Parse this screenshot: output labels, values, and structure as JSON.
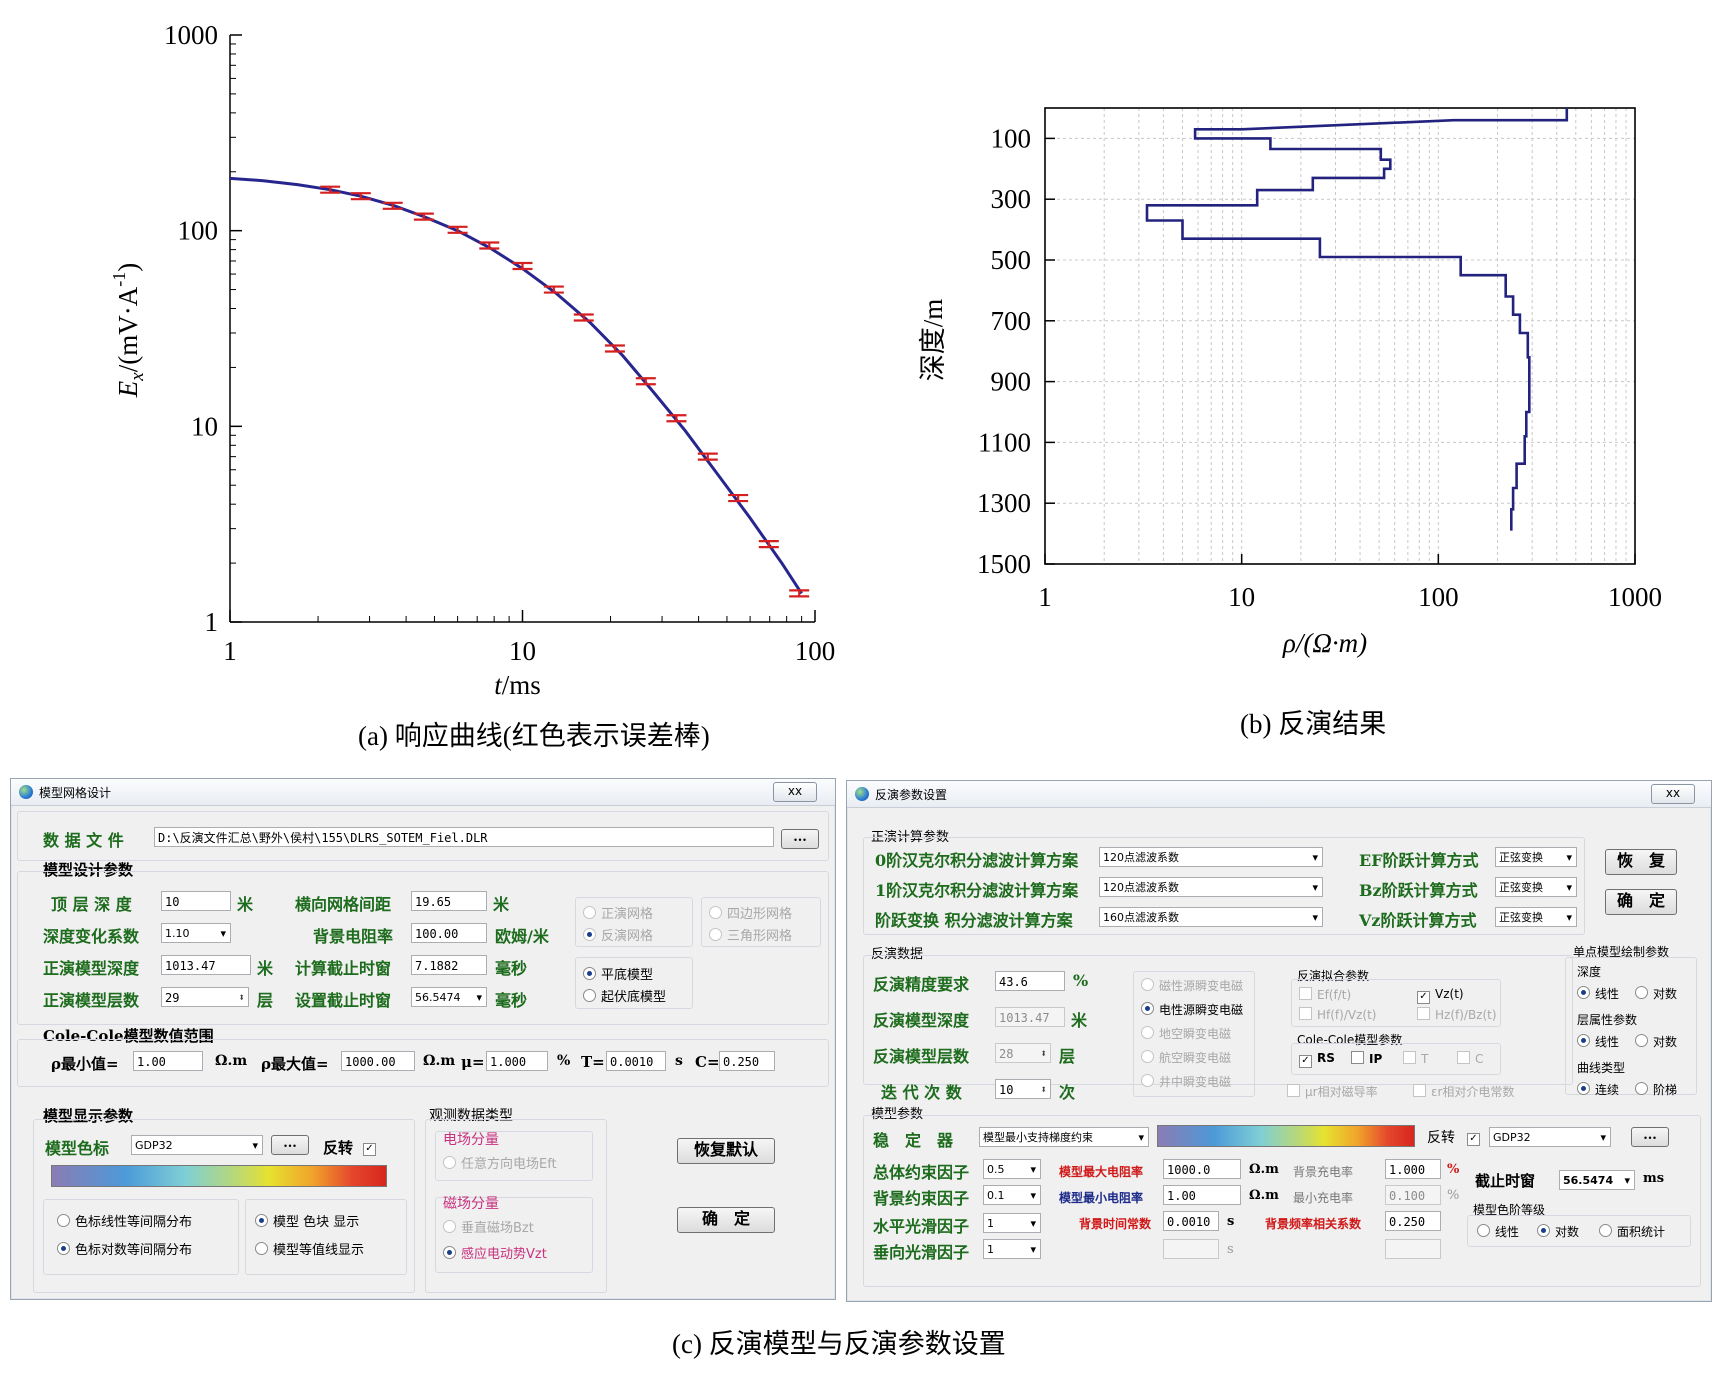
{
  "captions": {
    "a": "(a) 响应曲线(红色表示误差棒)",
    "b": "(b) 反演结果",
    "c": "(c) 反演模型与反演参数设置"
  },
  "chart_data": [
    {
      "type": "line",
      "x_scale": "log",
      "y_scale": "log",
      "xlim": [
        1,
        100
      ],
      "ylim": [
        1,
        1000
      ],
      "xlabel_main": "t",
      "xlabel_unit": "/ms",
      "ylabel_main": "E",
      "ylabel_sub": "x",
      "ylabel_unit": "/(mV·A",
      "ylabel_sup": "-1",
      "ylabel_close": ")",
      "x_ticks": [
        "1",
        "10",
        "100"
      ],
      "y_ticks": [
        "1",
        "10",
        "100",
        "1000"
      ],
      "line_color": "#26268e",
      "errorbar_color": "#d42020",
      "curve": {
        "x": [
          1,
          1.3,
          1.7,
          2.2,
          2.8,
          3.6,
          4.6,
          6,
          7.7,
          10,
          13,
          17,
          22,
          28,
          36,
          46,
          60,
          77,
          90
        ],
        "y": [
          185,
          180,
          172,
          162,
          150,
          135,
          118,
          100,
          82,
          64,
          48,
          34,
          23,
          15,
          9.5,
          5.8,
          3.4,
          2.0,
          1.4
        ]
      },
      "errorbars": {
        "x": [
          2.2,
          2.8,
          3.6,
          4.6,
          6,
          7.7,
          10,
          12.8,
          16.2,
          20.7,
          26.4,
          33.6,
          43,
          54.6,
          69.5,
          88.3
        ],
        "y": [
          162,
          150,
          134,
          118,
          101,
          84,
          66,
          50,
          36,
          25,
          17,
          11,
          7,
          4.3,
          2.5,
          1.4
        ]
      }
    },
    {
      "type": "line",
      "x_scale": "log",
      "xlim": [
        1,
        1000
      ],
      "ylim": [
        0,
        1500
      ],
      "y_inverted": true,
      "xlabel": "ρ/(Ω·m)",
      "ylabel": "深度/m",
      "x_ticks": [
        "1",
        "10",
        "100",
        "1000"
      ],
      "y_ticks": [
        "100",
        "300",
        "500",
        "700",
        "900",
        "1100",
        "1300",
        "1500"
      ],
      "line_color": "#23237f",
      "profile": {
        "rho": [
          450,
          450,
          120,
          10,
          5.8,
          5.8,
          14,
          14,
          51,
          51,
          57,
          57,
          53,
          53,
          23,
          23,
          12,
          12,
          3.3,
          3.3,
          5,
          5,
          25,
          25,
          130,
          130,
          220,
          220,
          240,
          240,
          260,
          260,
          285,
          285,
          290,
          290,
          280,
          280,
          275,
          275,
          250,
          250,
          240,
          240,
          235,
          235
        ],
        "depth": [
          0,
          40,
          40,
          70,
          70,
          100,
          100,
          135,
          135,
          170,
          170,
          200,
          200,
          230,
          230,
          270,
          270,
          320,
          320,
          370,
          370,
          430,
          430,
          490,
          490,
          550,
          550,
          620,
          620,
          680,
          680,
          740,
          740,
          820,
          820,
          1000,
          1000,
          1080,
          1080,
          1170,
          1170,
          1250,
          1250,
          1320,
          1320,
          1390
        ]
      }
    }
  ],
  "left_dialog": {
    "title": "模型网格设计",
    "close_label": "ⅹⅹ",
    "data_file_label": "数 据 文 件",
    "data_file_value": "D:\\反演文件汇总\\野外\\侯村\\155\\DLRS_SOTEM_Fiel.DLR",
    "browse_label": "...",
    "model_params_title": "模型设计参数",
    "top_depth_label": "顶 层 深 度",
    "top_depth_value": "10",
    "top_depth_unit": "米",
    "depth_change_label": "深度变化系数",
    "depth_change_value": "1.10",
    "forward_depth_label": "正演模型深度",
    "forward_depth_value": "1013.47",
    "forward_depth_unit": "米",
    "forward_layers_label": "正演模型层数",
    "forward_layers_value": "29",
    "forward_layers_unit": "层",
    "grid_spacing_label": "横向网格间距",
    "grid_spacing_value": "19.65",
    "grid_spacing_unit": "米",
    "bg_resistivity_label": "背景电阻率",
    "bg_resistivity_value": "100.00",
    "bg_resistivity_unit": "欧姆/米",
    "calc_cutoff_label": "计算截止时窗",
    "calc_cutoff_value": "7.1882",
    "calc_cutoff_unit": "毫秒",
    "set_cutoff_label": "设置截止时窗",
    "set_cutoff_value": "56.5474",
    "set_cutoff_unit": "毫秒",
    "grid_type_1": "正演网格",
    "grid_type_2": "反演网格",
    "grid_shape_1": "四边形网格",
    "grid_shape_2": "三角形网格",
    "bottom_1": "平底模型",
    "bottom_2": "起伏底模型",
    "colecole_title": "Cole-Cole模型数值范围",
    "rho_min_label": "ρ最小值=",
    "rho_min_value": "1.00",
    "rho_min_unit": "Ω.m",
    "rho_max_label": "ρ最大值=",
    "rho_max_value": "1000.00",
    "rho_max_unit": "Ω.m",
    "mu_label": "μ=",
    "mu_value": "1.000",
    "mu_unit": "%",
    "t_label": "T=",
    "t_value": "0.0010",
    "t_unit": "s",
    "c_label": "C=",
    "c_value": "0.250",
    "display_title": "模型显示参数",
    "colormap_label": "模型色标",
    "colormap_value": "GDP32",
    "colormap_btn": "...",
    "reverse_label": "反转",
    "linear_dist": "色标线性等间隔分布",
    "log_dist": "色标对数等间隔分布",
    "block_display": "模型 色块 显示",
    "contour_display": "模型等值线显示",
    "obs_type_title": "观测数据类型",
    "e_component": "电场分量",
    "e_option": "任意方向电场Eft",
    "m_component": "磁场分量",
    "m_option_1": "垂直磁场Bzt",
    "m_option_2": "感应电动势Vzt",
    "restore_btn": "恢复默认",
    "ok_btn": "确　定"
  },
  "right_dialog": {
    "title": "反演参数设置",
    "close_label": "ⅹⅹ",
    "forward_title": "正演计算参数",
    "hankel0_label": "0阶汉克尔积分滤波计算方案",
    "hankel0_value": "120点滤波系数",
    "hankel1_label": "1阶汉克尔积分滤波计算方案",
    "hankel1_value": "120点滤波系数",
    "step_label": "阶跃变换 积分滤波计算方案",
    "step_value": "160点滤波系数",
    "ef_label": "EF阶跃计算方式",
    "ef_value": "正弦变换",
    "bz_label": "Bz阶跃计算方式",
    "bz_value": "正弦变换",
    "vz_label": "Vz阶跃计算方式",
    "vz_value": "正弦变换",
    "restore_btn": "恢　复",
    "ok_btn": "确　定",
    "inv_data_title": "反演数据",
    "precision_label": "反演精度要求",
    "precision_value": "43.6",
    "precision_unit": "%",
    "inv_depth_label": "反演模型深度",
    "inv_depth_value": "1013.47",
    "inv_depth_unit": "米",
    "inv_layers_label": "反演模型层数",
    "inv_layers_value": "28",
    "inv_layers_unit": "层",
    "iter_label": "迭 代 次 数",
    "iter_value": "10",
    "iter_unit": "次",
    "src_1": "磁性源瞬变电磁",
    "src_2": "电性源瞬变电磁",
    "src_3": "地空瞬变电磁",
    "src_4": "航空瞬变电磁",
    "src_5": "井中瞬变电磁",
    "fit_title": "反演拟合参数",
    "fit_ef": "Ef(f/t)",
    "fit_vz": "Vz(t)",
    "fit_hf": "Hf(f)/Vz(t)",
    "fit_hz": "Hz(f)/Bz(t)",
    "cc_params_title": "Cole-Cole模型参数",
    "cc_rs": "RS",
    "cc_ip": "IP",
    "cc_t": "T",
    "cc_c": "C",
    "mu_fit": "μr相对磁导率",
    "eps_fit": "εr相对介电常数",
    "single_title": "单点模型绘制参数",
    "depth_title": "深度",
    "depth_linear": "线性",
    "depth_log": "对数",
    "layer_title": "层属性参数",
    "layer_linear": "线性",
    "layer_log": "对数",
    "curve_title": "曲线类型",
    "curve_cont": "连续",
    "curve_step": "阶梯",
    "model_params_title": "模型参数",
    "stabilizer_label": "稳　定　器",
    "stabilizer_value": "模型最小支持梯度约束",
    "reverse_label": "反转",
    "colormap_value": "GDP32",
    "colormap_btn": "...",
    "overall_label": "总体约束因子",
    "overall_value": "0.5",
    "bg_label": "背景约束因子",
    "bg_value": "0.1",
    "hsmooth_label": "水平光滑因子",
    "hsmooth_value": "1",
    "vsmooth_label": "垂向光滑因子",
    "vsmooth_value": "1",
    "max_rho_label": "模型最大电阻率",
    "max_rho_value": "1000.0",
    "max_rho_unit": "Ω.m",
    "min_rho_label": "模型最小电阻率",
    "min_rho_value": "1.00",
    "min_rho_unit": "Ω.m",
    "bg_time_label": "背景时间常数",
    "bg_time_value": "0.0010",
    "bg_time_unit": "s",
    "bg_time_unit2": "s",
    "bg_charge_label": "背景充电率",
    "bg_charge_value": "1.000",
    "bg_charge_unit": "%",
    "min_charge_label": "最小充电率",
    "min_charge_value": "0.100",
    "min_charge_unit": "%",
    "bg_freq_label": "背景频率相关系数",
    "bg_freq_value": "0.250",
    "cutoff_label": "截止时窗",
    "cutoff_value": "56.5474",
    "cutoff_unit": "ms",
    "grade_title": "模型色阶等级",
    "grade_linear": "线性",
    "grade_log": "对数",
    "grade_area": "面积统计"
  }
}
